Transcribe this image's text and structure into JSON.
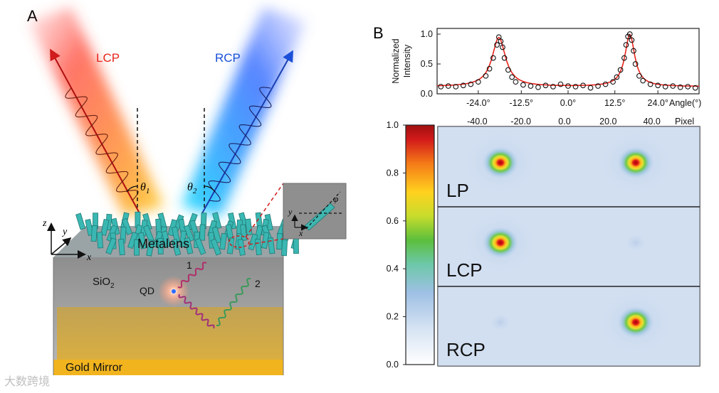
{
  "panel_a": {
    "label": "A",
    "lcp": "LCP",
    "rcp": "RCP",
    "theta1": "θ",
    "theta1_sub": "1",
    "theta2": "θ",
    "theta2_sub": "2",
    "metalens": "Metalens",
    "sio2": "SiO",
    "sio2_sub": "2",
    "qd": "QD",
    "path1": "1",
    "path2": "2",
    "gold": "Gold Mirror",
    "axis_z": "z",
    "axis_y": "y",
    "axis_x": "x",
    "inset_y": "y",
    "inset_x": "x",
    "inset_phi": "φ"
  },
  "panel_b": {
    "label": "B",
    "ylabel_line1": "Normalized",
    "ylabel_line2": "Intensity",
    "angle_label": "Angle(°)",
    "pixel_label": "Pixel",
    "rows": [
      "LP",
      "LCP",
      "RCP"
    ]
  },
  "chart_data": [
    {
      "type": "line",
      "title": "",
      "xlabel": "Angle(°)",
      "ylabel": "Normalized Intensity",
      "xlim": [
        -35,
        35
      ],
      "ylim": [
        0,
        1
      ],
      "x_ticks": [
        "-24.0°",
        "-12.5°",
        "0.0°",
        "12.5°",
        "24.0°"
      ],
      "x_tick_values": [
        -24,
        -12.5,
        0,
        12.5,
        24
      ],
      "y_ticks": [
        "0.0",
        "0.5",
        "1.0"
      ],
      "y_tick_values": [
        0,
        0.5,
        1.0
      ],
      "series": [
        {
          "name": "measured",
          "style": "open-circles",
          "color": "#000000",
          "x": [
            -34,
            -32,
            -30,
            -28,
            -26,
            -24,
            -22,
            -21,
            -20,
            -19,
            -18.5,
            -18,
            -17.5,
            -17,
            -16,
            -15,
            -14,
            -12,
            -10,
            -8,
            -6,
            -4,
            -2,
            0,
            2,
            4,
            6,
            8,
            10,
            12,
            13,
            14,
            15,
            15.5,
            16,
            16.5,
            17,
            17.5,
            18,
            19,
            20,
            22,
            24,
            26,
            28,
            30,
            32,
            34
          ],
          "y": [
            0.12,
            0.13,
            0.12,
            0.14,
            0.16,
            0.2,
            0.3,
            0.42,
            0.6,
            0.82,
            0.95,
            0.88,
            0.78,
            0.6,
            0.4,
            0.28,
            0.2,
            0.15,
            0.13,
            0.11,
            0.14,
            0.12,
            0.16,
            0.13,
            0.12,
            0.14,
            0.1,
            0.13,
            0.16,
            0.2,
            0.28,
            0.4,
            0.6,
            0.82,
            0.96,
            1.0,
            0.9,
            0.72,
            0.5,
            0.3,
            0.22,
            0.16,
            0.14,
            0.12,
            0.13,
            0.11,
            0.12,
            0.1
          ]
        },
        {
          "name": "fit",
          "style": "line",
          "color": "#e8241c",
          "peaks": [
            {
              "center": -18.5,
              "height": 0.82,
              "width": 2.2
            },
            {
              "center": 16.5,
              "height": 0.87,
              "width": 1.6
            }
          ],
          "baseline": 0.12
        }
      ]
    },
    {
      "type": "heatmap",
      "title": "",
      "xlabel": "Pixel",
      "x_ticks": [
        "-40.0",
        "-20.0",
        "0.0",
        "20.0",
        "40.0"
      ],
      "x_tick_values": [
        -40,
        -20,
        0,
        20,
        40
      ],
      "xlim": [
        -60,
        60
      ],
      "colorbar": {
        "ticks": [
          "0.0",
          "0.2",
          "0.4",
          "0.6",
          "0.8",
          "1.0"
        ],
        "tick_values": [
          0,
          0.2,
          0.4,
          0.6,
          0.8,
          1.0
        ],
        "range": [
          0,
          1
        ]
      },
      "rows": [
        {
          "name": "LP",
          "spots": [
            {
              "pixel": -30,
              "intensity": 1.0
            },
            {
              "pixel": 30,
              "intensity": 1.0
            }
          ]
        },
        {
          "name": "LCP",
          "spots": [
            {
              "pixel": -30,
              "intensity": 1.0
            },
            {
              "pixel": 30,
              "intensity": 0.05
            }
          ]
        },
        {
          "name": "RCP",
          "spots": [
            {
              "pixel": -30,
              "intensity": 0.03
            },
            {
              "pixel": 30,
              "intensity": 1.0
            }
          ]
        }
      ]
    }
  ],
  "watermark": "大数跨境",
  "colors": {
    "lcp": "#e8241c",
    "rcp": "#1a4fd8",
    "fit": "#e8241c",
    "gold": "#f2b41e"
  }
}
